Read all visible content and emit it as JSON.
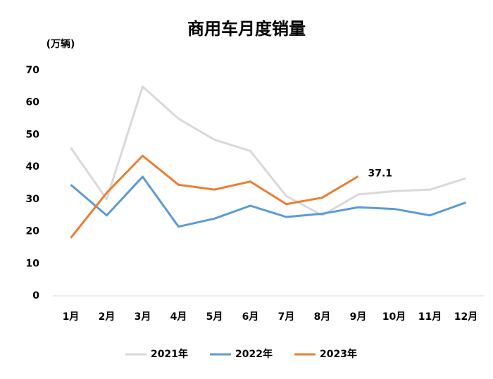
{
  "chart_data": {
    "type": "line",
    "title": "商用车月度销量",
    "y_label": "(万辆)",
    "categories": [
      "1月",
      "2月",
      "3月",
      "4月",
      "5月",
      "6月",
      "7月",
      "8月",
      "9月",
      "10月",
      "11月",
      "12月"
    ],
    "series": [
      {
        "name": "2021年",
        "color": "#d9d9d9",
        "values": [
          46,
          30,
          65,
          55,
          48.5,
          45,
          31,
          25,
          31.5,
          32.5,
          33,
          36.5
        ]
      },
      {
        "name": "2022年",
        "color": "#5b9bd5",
        "values": [
          34.5,
          25,
          37,
          21.5,
          24,
          28,
          24.5,
          25.5,
          27.5,
          27,
          25,
          29
        ]
      },
      {
        "name": "2023年",
        "color": "#ed7d31",
        "values": [
          18,
          32,
          43.5,
          34.5,
          33,
          35.5,
          28.5,
          30.5,
          37.1,
          null,
          null,
          null
        ],
        "value_labels": [
          null,
          null,
          null,
          null,
          null,
          null,
          null,
          null,
          "37.1",
          null,
          null,
          null
        ]
      }
    ],
    "ylim": [
      0,
      70
    ],
    "yticks": [
      0,
      10,
      20,
      30,
      40,
      50,
      60,
      70
    ],
    "grid": false,
    "legend": "bottom"
  }
}
